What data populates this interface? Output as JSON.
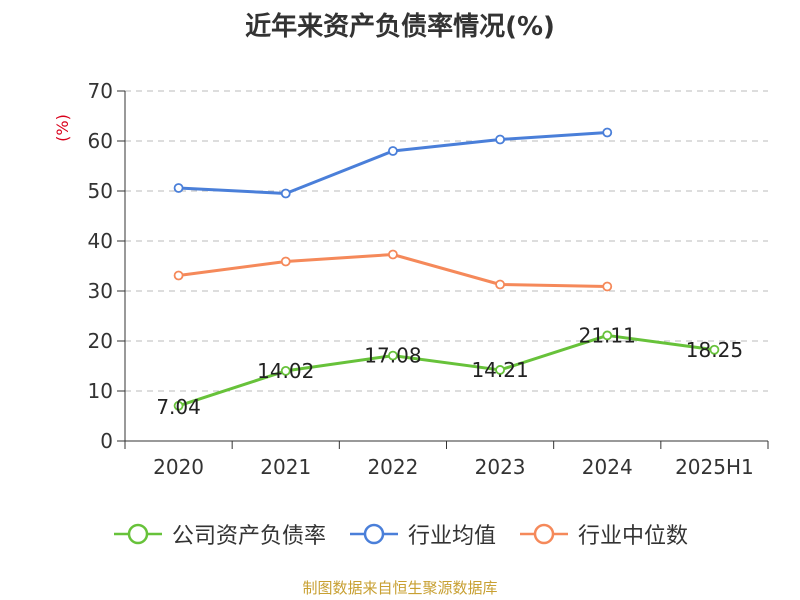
{
  "colors": {
    "company": "#67c23a",
    "industry_avg": "#4a7fd9",
    "industry_median": "#f5895a",
    "axis": "#333333",
    "grid": "#bbbbbb",
    "unit": "#d9001b",
    "source": "#c8a032"
  },
  "chart_data": {
    "type": "line",
    "title": "近年来资产负债率情况(%)",
    "ylabel": "(%)",
    "xlabel": "",
    "categories": [
      "2020",
      "2021",
      "2022",
      "2023",
      "2024",
      "2025H1"
    ],
    "ylim": [
      0,
      70
    ],
    "yticks": [
      0,
      10,
      20,
      30,
      40,
      50,
      60,
      70
    ],
    "grid": true,
    "legend_position": "bottom",
    "series": [
      {
        "name": "公司资产负债率",
        "color_key": "company",
        "show_labels": true,
        "values": [
          7.04,
          14.02,
          17.08,
          14.21,
          21.11,
          18.25
        ],
        "labels": [
          "7.04",
          "14.02",
          "17.08",
          "14.21",
          "21.11",
          "18.25"
        ]
      },
      {
        "name": "行业均值",
        "color_key": "industry_avg",
        "show_labels": false,
        "values": [
          50.6,
          49.5,
          58.0,
          60.3,
          61.7,
          null
        ]
      },
      {
        "name": "行业中位数",
        "color_key": "industry_median",
        "show_labels": false,
        "values": [
          33.1,
          35.9,
          37.3,
          31.3,
          30.9,
          null
        ]
      }
    ]
  },
  "source_note": "制图数据来自恒生聚源数据库"
}
